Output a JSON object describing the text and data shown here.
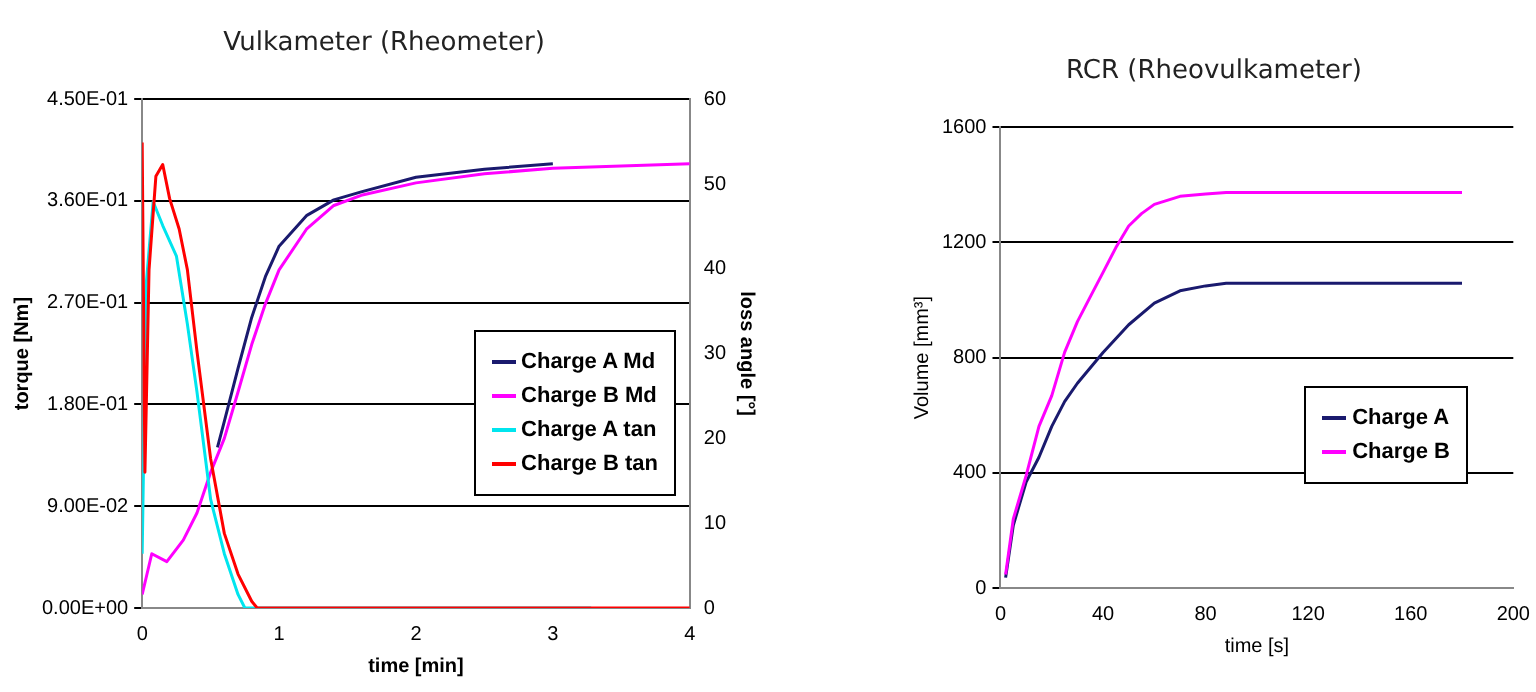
{
  "chart_data": [
    {
      "type": "line",
      "title": "Vulkameter (Rheometer)",
      "xlabel": "time [min]",
      "ylabel": "torque [Nm]",
      "y2label": "loss angle [°]",
      "xlim": [
        0,
        4
      ],
      "xticks": [
        0,
        1,
        2,
        3,
        4
      ],
      "ylim": [
        0,
        0.45
      ],
      "yticks": [
        {
          "value": 0,
          "label": "0.00E+00"
        },
        {
          "value": 0.09,
          "label": "9.00E-02"
        },
        {
          "value": 0.18,
          "label": "1.80E-01"
        },
        {
          "value": 0.27,
          "label": "2.70E-01"
        },
        {
          "value": 0.36,
          "label": "3.60E-01"
        },
        {
          "value": 0.45,
          "label": "4.50E-01"
        }
      ],
      "y2lim": [
        0,
        60
      ],
      "y2ticks": [
        0,
        10,
        20,
        30,
        40,
        50,
        60
      ],
      "grid": "y",
      "legend": "right",
      "marker": "none",
      "line_style": "solid",
      "series": [
        {
          "name": "Charge A Md",
          "color": "#1a1a6e",
          "x": [
            0.55,
            0.6,
            0.7,
            0.8,
            0.9,
            1,
            1.2,
            1.4,
            1.6,
            2,
            2.5,
            3
          ],
          "values": [
            0.142,
            0.165,
            0.212,
            0.257,
            0.293,
            0.32,
            0.347,
            0.361,
            0.368,
            0.381,
            0.388,
            0.393
          ]
        },
        {
          "name": "Charge B Md",
          "color": "#ff00ff",
          "x": [
            0,
            0.07,
            0.18,
            0.3,
            0.4,
            0.5,
            0.6,
            0.7,
            0.8,
            0.9,
            1,
            1.2,
            1.4,
            1.6,
            2,
            2.5,
            3,
            3.5,
            4
          ],
          "values": [
            0.012,
            0.048,
            0.041,
            0.06,
            0.084,
            0.12,
            0.15,
            0.191,
            0.233,
            0.269,
            0.299,
            0.335,
            0.356,
            0.365,
            0.376,
            0.384,
            0.389,
            0.391,
            0.393
          ]
        },
        {
          "name": "Charge A tan",
          "color": "#00e5ee",
          "axis": "y2",
          "x": [
            0,
            0.03,
            0.08,
            0.15,
            0.25,
            0.33,
            0.4,
            0.5,
            0.6,
            0.7,
            0.75,
            3.28
          ],
          "values": [
            6.4,
            38.3,
            47.9,
            45.1,
            41.5,
            33.5,
            25.5,
            12.8,
            6.4,
            1.6,
            0,
            0
          ]
        },
        {
          "name": "Charge B tan",
          "color": "#ff0000",
          "axis": "y2",
          "x": [
            0,
            0.02,
            0.05,
            0.1,
            0.15,
            0.2,
            0.27,
            0.33,
            0.4,
            0.5,
            0.6,
            0.7,
            0.8,
            0.84,
            4
          ],
          "values": [
            54.9,
            16,
            39.9,
            50.9,
            52.3,
            48.3,
            44.7,
            39.9,
            30.3,
            17.6,
            8.8,
            4,
            0.8,
            0,
            0
          ]
        }
      ]
    },
    {
      "type": "line",
      "title": "RCR (Rheovulkameter)",
      "xlabel": "time [s]",
      "ylabel": "Volume [mm³]",
      "xlim": [
        0,
        200
      ],
      "xticks": [
        0,
        40,
        80,
        120,
        160,
        200
      ],
      "ylim": [
        0,
        1600
      ],
      "yticks": [
        0,
        400,
        800,
        1200,
        1600
      ],
      "grid": "y",
      "legend": "bottom right",
      "marker": "none",
      "line_style": "solid",
      "series": [
        {
          "name": "Charge A",
          "color": "#1a1a6e",
          "x": [
            2,
            5,
            10,
            15,
            20,
            25,
            30,
            40,
            50,
            60,
            70,
            80,
            88,
            180
          ],
          "values": [
            36,
            218,
            368,
            454,
            561,
            647,
            711,
            818,
            914,
            989,
            1032,
            1049,
            1058,
            1058
          ]
        },
        {
          "name": "Charge B",
          "color": "#ff00ff",
          "x": [
            2,
            5,
            10,
            15,
            20,
            25,
            30,
            35,
            40,
            45,
            50,
            55,
            60,
            70,
            80,
            88,
            180
          ],
          "values": [
            47,
            240,
            390,
            561,
            668,
            818,
            925,
            1011,
            1096,
            1182,
            1257,
            1300,
            1332,
            1360,
            1368,
            1373,
            1373
          ]
        }
      ]
    }
  ]
}
